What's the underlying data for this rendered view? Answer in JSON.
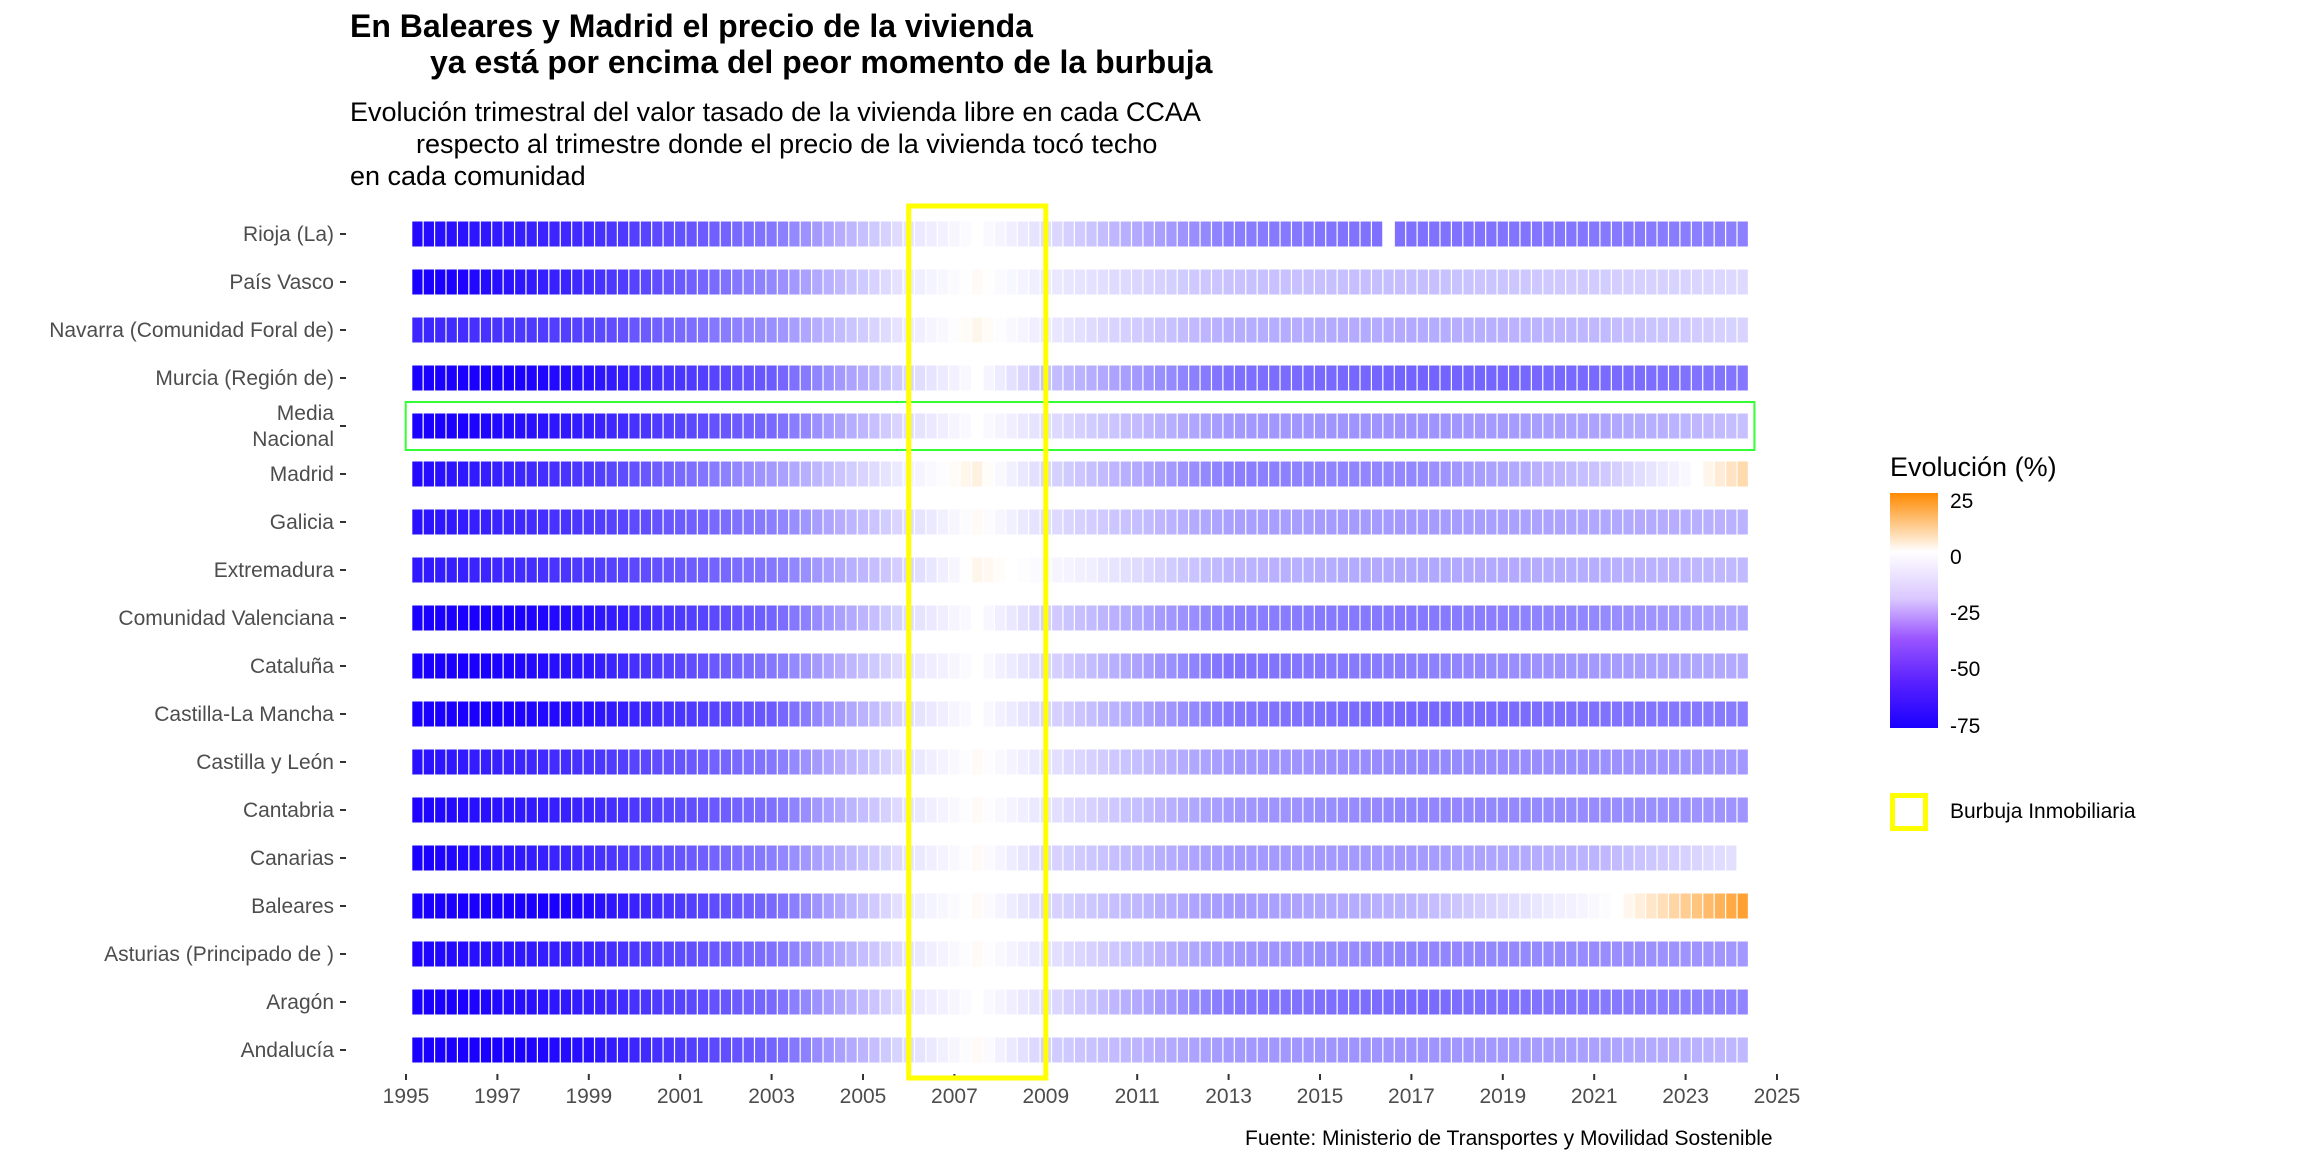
{
  "title_lines": [
    "En Baleares y Madrid el precio de la vivienda",
    "ya está por encima del peor momento de la burbuja"
  ],
  "subtitle_lines": [
    "Evolución trimestral del valor tasado de la vivienda libre en cada CCAA",
    "respecto al trimestre donde el precio de la vivienda tocó techo",
    "en cada comunidad"
  ],
  "source": "Fuente: Ministerio de Transportes y Movilidad Sostenible",
  "legend": {
    "title": "Evolución (%)",
    "ticks": [
      "25",
      "0",
      "-25",
      "-50",
      "-75"
    ],
    "bubble_label": "Burbuja Inmobiliaria"
  },
  "colors": {
    "low": "#1a00ff",
    "mid": "#ffffff",
    "high": "#ff8a00",
    "bubble_box": "#ffff00",
    "national_box": "#33ff33",
    "axis_text": "#4d4d4d"
  },
  "chart_data": {
    "type": "heatmap",
    "x_unit": "quarter",
    "x_start": "1995 Q2",
    "x_end": "2024 Q2",
    "xlim": [
      1995,
      2025
    ],
    "x_ticks": [
      "1995",
      "1997",
      "1999",
      "2001",
      "2003",
      "2005",
      "2007",
      "2009",
      "2011",
      "2013",
      "2015",
      "2017",
      "2019",
      "2021",
      "2023",
      "2025"
    ],
    "color_scale": {
      "min": -75,
      "max": 25,
      "label": "Evolución (%)"
    },
    "bubble_period": [
      2006.0,
      2009.0
    ],
    "rows": [
      {
        "name": "Rioja (La)",
        "label_lines": [
          "Rioja (La)"
        ],
        "knots": [
          [
            1995.25,
            -72
          ],
          [
            1999,
            -62
          ],
          [
            2003,
            -40
          ],
          [
            2006,
            -8
          ],
          [
            2007.5,
            0
          ],
          [
            2009,
            -10
          ],
          [
            2011,
            -25
          ],
          [
            2013,
            -38
          ],
          [
            2016.25,
            -42
          ],
          [
            2017,
            -42
          ],
          [
            2021,
            -40
          ],
          [
            2024.5,
            -37
          ]
        ],
        "missing": [
          "2016 Q3"
        ]
      },
      {
        "name": "País Vasco",
        "label_lines": [
          "País Vasco"
        ],
        "knots": [
          [
            1995.25,
            -78
          ],
          [
            1999,
            -62
          ],
          [
            2003,
            -35
          ],
          [
            2006,
            -6
          ],
          [
            2007.5,
            1
          ],
          [
            2009,
            -6
          ],
          [
            2013,
            -18
          ],
          [
            2017,
            -19
          ],
          [
            2021,
            -15
          ],
          [
            2024.5,
            -11
          ]
        ]
      },
      {
        "name": "Navarra (Comunidad Foral de)",
        "label_lines": [
          "Navarra (Comunidad Foral de)"
        ],
        "knots": [
          [
            1995.25,
            -64
          ],
          [
            1999,
            -55
          ],
          [
            2003,
            -33
          ],
          [
            2006,
            -6
          ],
          [
            2007.5,
            2
          ],
          [
            2009,
            -6
          ],
          [
            2013,
            -24
          ],
          [
            2017,
            -25
          ],
          [
            2021,
            -21
          ],
          [
            2024.5,
            -12
          ]
        ]
      },
      {
        "name": "Murcia (Región de)",
        "label_lines": [
          "Murcia (Región de)"
        ],
        "knots": [
          [
            1995.25,
            -82
          ],
          [
            1999,
            -70
          ],
          [
            2003,
            -48
          ],
          [
            2006,
            -12
          ],
          [
            2007.5,
            0
          ],
          [
            2009,
            -18
          ],
          [
            2013,
            -42
          ],
          [
            2017,
            -46
          ],
          [
            2021,
            -44
          ],
          [
            2024.5,
            -40
          ]
        ]
      },
      {
        "name": "Media Nacional",
        "label_lines": [
          "Media",
          "Nacional"
        ],
        "highlight": true,
        "knots": [
          [
            1995.25,
            -78
          ],
          [
            1999,
            -66
          ],
          [
            2003,
            -44
          ],
          [
            2006,
            -10
          ],
          [
            2007.5,
            0
          ],
          [
            2009,
            -10
          ],
          [
            2013,
            -30
          ],
          [
            2017,
            -32
          ],
          [
            2021,
            -27
          ],
          [
            2024.5,
            -18
          ]
        ]
      },
      {
        "name": "Madrid",
        "label_lines": [
          "Madrid"
        ],
        "knots": [
          [
            1995.25,
            -72
          ],
          [
            1999,
            -58
          ],
          [
            2003,
            -30
          ],
          [
            2006,
            -4
          ],
          [
            2007.5,
            3
          ],
          [
            2009,
            -12
          ],
          [
            2013,
            -38
          ],
          [
            2017,
            -35
          ],
          [
            2021,
            -18
          ],
          [
            2023,
            -2
          ],
          [
            2024.5,
            10
          ]
        ]
      },
      {
        "name": "Galicia",
        "label_lines": [
          "Galicia"
        ],
        "knots": [
          [
            1995.25,
            -70
          ],
          [
            1999,
            -58
          ],
          [
            2003,
            -38
          ],
          [
            2006,
            -10
          ],
          [
            2007.5,
            1
          ],
          [
            2009,
            -10
          ],
          [
            2013,
            -28
          ],
          [
            2017,
            -30
          ],
          [
            2021,
            -26
          ],
          [
            2024.5,
            -22
          ]
        ]
      },
      {
        "name": "Extremadura",
        "label_lines": [
          "Extremadura"
        ],
        "knots": [
          [
            1995.25,
            -68
          ],
          [
            1999,
            -58
          ],
          [
            2003,
            -40
          ],
          [
            2006,
            -12
          ],
          [
            2007.5,
            2
          ],
          [
            2010,
            -5
          ],
          [
            2013,
            -22
          ],
          [
            2017,
            -26
          ],
          [
            2021,
            -24
          ],
          [
            2024.5,
            -20
          ]
        ]
      },
      {
        "name": "Comunidad Valenciana",
        "label_lines": [
          "Comunidad Valenciana"
        ],
        "knots": [
          [
            1995.25,
            -82
          ],
          [
            1999,
            -70
          ],
          [
            2003,
            -46
          ],
          [
            2006,
            -10
          ],
          [
            2007.5,
            0
          ],
          [
            2009,
            -14
          ],
          [
            2013,
            -38
          ],
          [
            2017,
            -40
          ],
          [
            2021,
            -35
          ],
          [
            2024.5,
            -25
          ]
        ]
      },
      {
        "name": "Cataluña",
        "label_lines": [
          "Cataluña"
        ],
        "knots": [
          [
            1995.25,
            -80
          ],
          [
            1999,
            -68
          ],
          [
            2003,
            -40
          ],
          [
            2006,
            -8
          ],
          [
            2007.5,
            0
          ],
          [
            2009,
            -12
          ],
          [
            2013,
            -42
          ],
          [
            2017,
            -38
          ],
          [
            2021,
            -30
          ],
          [
            2024.5,
            -24
          ]
        ]
      },
      {
        "name": "Castilla-La Mancha",
        "label_lines": [
          "Castilla-La Mancha"
        ],
        "knots": [
          [
            1995.25,
            -80
          ],
          [
            1999,
            -70
          ],
          [
            2003,
            -48
          ],
          [
            2006,
            -10
          ],
          [
            2007.5,
            0
          ],
          [
            2009,
            -12
          ],
          [
            2013,
            -40
          ],
          [
            2017,
            -45
          ],
          [
            2021,
            -42
          ],
          [
            2024.5,
            -38
          ]
        ]
      },
      {
        "name": "Castilla y León",
        "label_lines": [
          "Castilla y León"
        ],
        "knots": [
          [
            1995.25,
            -70
          ],
          [
            1999,
            -60
          ],
          [
            2003,
            -40
          ],
          [
            2006,
            -8
          ],
          [
            2007.5,
            1
          ],
          [
            2009,
            -8
          ],
          [
            2013,
            -30
          ],
          [
            2017,
            -35
          ],
          [
            2021,
            -33
          ],
          [
            2024.5,
            -30
          ]
        ]
      },
      {
        "name": "Cantabria",
        "label_lines": [
          "Cantabria"
        ],
        "knots": [
          [
            1995.25,
            -74
          ],
          [
            1999,
            -64
          ],
          [
            2003,
            -42
          ],
          [
            2006,
            -8
          ],
          [
            2007.5,
            1
          ],
          [
            2009,
            -8
          ],
          [
            2013,
            -30
          ],
          [
            2017,
            -36
          ],
          [
            2021,
            -34
          ],
          [
            2024.5,
            -31
          ]
        ]
      },
      {
        "name": "Canarias",
        "label_lines": [
          "Canarias"
        ],
        "knots": [
          [
            1995.25,
            -76
          ],
          [
            1999,
            -62
          ],
          [
            2003,
            -38
          ],
          [
            2006,
            -8
          ],
          [
            2007.5,
            1
          ],
          [
            2009,
            -12
          ],
          [
            2013,
            -30
          ],
          [
            2017,
            -30
          ],
          [
            2021,
            -22
          ],
          [
            2024.25,
            -8
          ]
        ],
        "missing": [
          "2024 Q2"
        ]
      },
      {
        "name": "Baleares",
        "label_lines": [
          "Baleares"
        ],
        "knots": [
          [
            1995.25,
            -90
          ],
          [
            1999,
            -72
          ],
          [
            2003,
            -44
          ],
          [
            2006,
            -6
          ],
          [
            2007.5,
            1
          ],
          [
            2009,
            -12
          ],
          [
            2013,
            -30
          ],
          [
            2017,
            -22
          ],
          [
            2020,
            -6
          ],
          [
            2021.5,
            0
          ],
          [
            2022.5,
            7
          ],
          [
            2024.5,
            22
          ]
        ]
      },
      {
        "name": "Asturias (Principado de )",
        "label_lines": [
          "Asturias (Principado de )"
        ],
        "knots": [
          [
            1995.25,
            -74
          ],
          [
            1999,
            -64
          ],
          [
            2003,
            -42
          ],
          [
            2006,
            -8
          ],
          [
            2007.5,
            1
          ],
          [
            2009,
            -8
          ],
          [
            2013,
            -30
          ],
          [
            2017,
            -36
          ],
          [
            2021,
            -34
          ],
          [
            2024.5,
            -30
          ]
        ]
      },
      {
        "name": "Aragón",
        "label_lines": [
          "Aragón"
        ],
        "knots": [
          [
            1995.25,
            -78
          ],
          [
            1999,
            -66
          ],
          [
            2003,
            -44
          ],
          [
            2006,
            -8
          ],
          [
            2007.5,
            0
          ],
          [
            2009,
            -10
          ],
          [
            2013,
            -40
          ],
          [
            2017,
            -44
          ],
          [
            2021,
            -40
          ],
          [
            2024.5,
            -36
          ]
        ]
      },
      {
        "name": "Andalucía",
        "label_lines": [
          "Andalucía"
        ],
        "knots": [
          [
            1995.25,
            -82
          ],
          [
            1999,
            -70
          ],
          [
            2003,
            -46
          ],
          [
            2006,
            -10
          ],
          [
            2007.5,
            1
          ],
          [
            2009,
            -14
          ],
          [
            2013,
            -30
          ],
          [
            2017,
            -32
          ],
          [
            2021,
            -28
          ],
          [
            2024.5,
            -20
          ]
        ]
      }
    ]
  }
}
